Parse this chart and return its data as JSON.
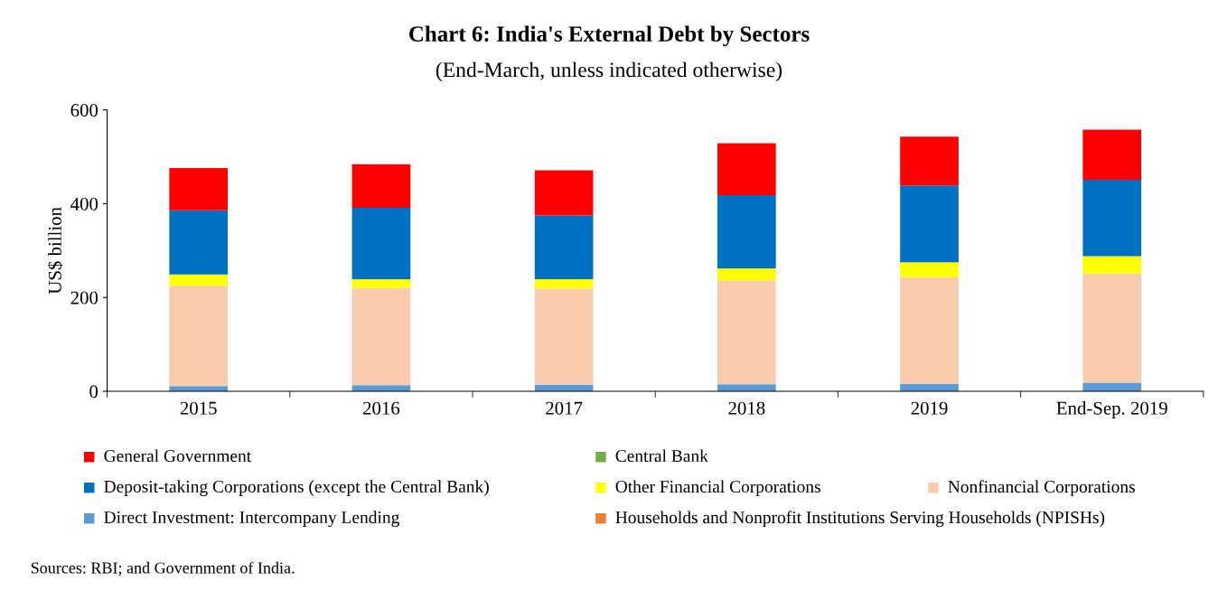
{
  "chart_data": {
    "type": "bar",
    "stacked": true,
    "title": "Chart 6: India's External Debt by Sectors",
    "subtitle": "(End-March, unless indicated otherwise)",
    "ylabel": "US$ billion",
    "categories": [
      "2015",
      "2016",
      "2017",
      "2018",
      "2019",
      "End-Sep. 2019"
    ],
    "series": [
      {
        "name": "Direct Investment: Intercompany Lending",
        "color": "#5b9bd5",
        "values": [
          11,
          13,
          14,
          15,
          16,
          18
        ]
      },
      {
        "name": "Households and Nonprofit Institutions Serving Households (NPISHs)",
        "color": "#ed7d31",
        "values": [
          0,
          0,
          0,
          0,
          0,
          0
        ]
      },
      {
        "name": "Nonfinancial Corporations",
        "color": "#f8cbad",
        "values": [
          214,
          207,
          205,
          221,
          227,
          233
        ]
      },
      {
        "name": "Other Financial Corporations",
        "color": "#ffff00",
        "values": [
          24,
          19,
          20,
          26,
          32,
          37
        ]
      },
      {
        "name": "Deposit-taking Corporations (except the Central Bank)",
        "color": "#0070c0",
        "values": [
          137,
          152,
          136,
          156,
          164,
          163
        ]
      },
      {
        "name": "Central Bank",
        "color": "#70ad47",
        "values": [
          0,
          0,
          0,
          0,
          0,
          0
        ]
      },
      {
        "name": "General Government",
        "color": "#ff0000",
        "values": [
          90,
          93,
          96,
          111,
          104,
          107
        ]
      }
    ],
    "ylim": [
      0,
      600
    ],
    "yticks": [
      0,
      200,
      400,
      600
    ],
    "grid": false,
    "legend": "bottom",
    "annotations": [
      "Sources: RBI; and Government of India."
    ]
  }
}
